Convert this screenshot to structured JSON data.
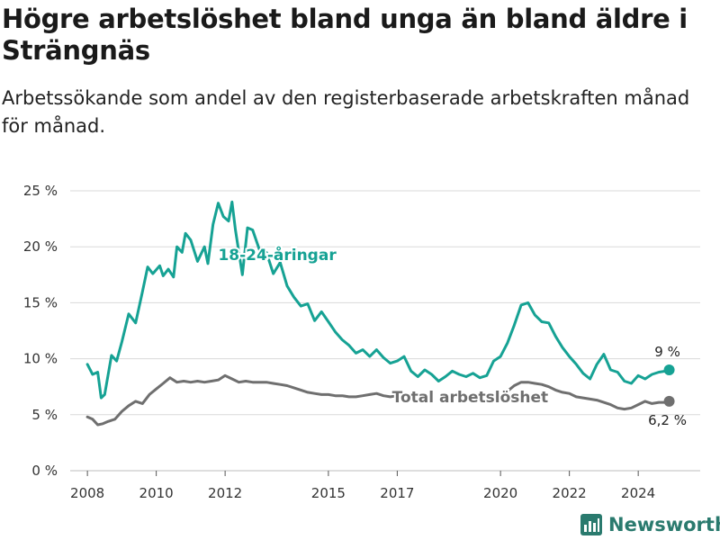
{
  "title": "Högre arbetslöshet bland unga än bland äldre i Strängnäs",
  "subtitle": "Arbetssökande som andel av den registerbaserade arbetskraften månad för månad.",
  "brand": "Newsworthy",
  "colors": {
    "youth": "#16a294",
    "total": "#6f6f6f",
    "grid": "#d9d9d9",
    "brand": "#2a7a6e"
  },
  "chart_data": {
    "type": "line",
    "xlim": [
      2007.5,
      2025.8
    ],
    "ylim": [
      0,
      25
    ],
    "grid": true,
    "x_ticks": [
      {
        "value": 2008,
        "label": "2008"
      },
      {
        "value": 2010,
        "label": "2010"
      },
      {
        "value": 2012,
        "label": "2012"
      },
      {
        "value": 2015,
        "label": "2015"
      },
      {
        "value": 2017,
        "label": "2017"
      },
      {
        "value": 2020,
        "label": "2020"
      },
      {
        "value": 2022,
        "label": "2022"
      },
      {
        "value": 2024,
        "label": "2024"
      }
    ],
    "y_ticks": [
      {
        "value": 0,
        "label": "0 %"
      },
      {
        "value": 5,
        "label": "5 %"
      },
      {
        "value": 10,
        "label": "10 %"
      },
      {
        "value": 15,
        "label": "15 %"
      },
      {
        "value": 20,
        "label": "20 %"
      },
      {
        "value": 25,
        "label": "25 %"
      }
    ],
    "series": [
      {
        "name": "18-24-åringar",
        "label_at": [
          2011.8,
          18.8
        ],
        "end_label": "9 %",
        "segments": [
          {
            "x": [
              2008.0,
              2008.15,
              2008.3,
              2008.4,
              2008.5,
              2008.7,
              2008.85,
              2009.0,
              2009.2,
              2009.4,
              2009.6,
              2009.75,
              2009.9,
              2010.1,
              2010.2,
              2010.35,
              2010.5,
              2010.6,
              2010.75,
              2010.85,
              2011.0,
              2011.2,
              2011.4,
              2011.5,
              2011.65,
              2011.8,
              2011.95,
              2012.1,
              2012.2,
              2012.3,
              2012.5,
              2012.65,
              2012.8,
              2013.0,
              2013.2,
              2013.4,
              2013.6,
              2013.8,
              2014.0,
              2014.2,
              2014.4,
              2014.6,
              2014.8,
              2015.0,
              2015.2,
              2015.4,
              2015.6,
              2015.8,
              2016.0,
              2016.2,
              2016.4,
              2016.6,
              2016.8,
              2017.0,
              2017.2,
              2017.4,
              2017.6,
              2017.8,
              2018.0,
              2018.2,
              2018.4,
              2018.6,
              2018.8,
              2019.0,
              2019.2,
              2019.4,
              2019.6,
              2019.8,
              2020.0,
              2020.2,
              2020.4,
              2020.6,
              2020.8,
              2021.0,
              2021.2,
              2021.4,
              2021.6,
              2021.8,
              2022.0,
              2022.2,
              2022.4,
              2022.6,
              2022.8,
              2023.0,
              2023.2,
              2023.4,
              2023.6,
              2023.8,
              2024.0,
              2024.2,
              2024.4,
              2024.6,
              2024.8,
              2024.9
            ],
            "y": [
              9.5,
              8.6,
              8.8,
              6.5,
              6.8,
              10.3,
              9.8,
              11.5,
              14.0,
              13.2,
              16.0,
              18.2,
              17.6,
              18.3,
              17.4,
              18.0,
              17.3,
              20.0,
              19.5,
              21.2,
              20.6,
              18.7,
              20.0,
              18.5,
              22.0,
              23.9,
              22.7,
              22.3,
              24.0,
              21.5,
              17.5,
              21.7,
              21.5,
              19.7,
              19.5,
              17.6,
              18.6,
              16.5,
              15.5,
              14.7,
              14.9,
              13.4,
              14.2,
              13.3,
              12.4,
              11.7,
              11.2,
              10.5,
              10.8,
              10.2,
              10.8,
              10.1,
              9.6,
              9.8,
              10.2,
              8.9,
              8.4,
              9.0,
              8.6,
              8.0,
              8.4,
              8.9,
              8.6,
              8.4,
              8.7,
              8.3,
              8.5,
              9.8,
              10.2,
              11.4,
              13.0,
              14.8,
              15.0,
              13.9,
              13.3,
              13.2,
              12.0,
              11.0,
              10.2,
              9.5,
              8.7,
              8.2,
              9.5,
              10.4,
              9.0,
              8.8,
              8.0,
              7.8,
              8.5,
              8.2,
              8.6,
              8.8,
              8.9,
              9.0
            ]
          }
        ]
      },
      {
        "name": "Total arbetslöshet",
        "label_at": [
          2016.85,
          6.1
        ],
        "end_label": "6,2 %",
        "segments": [
          {
            "x": [
              2008.0,
              2008.15,
              2008.3,
              2008.45,
              2008.6,
              2008.8,
              2009.0,
              2009.2,
              2009.4,
              2009.6,
              2009.8,
              2010.0,
              2010.2,
              2010.4,
              2010.6,
              2010.8,
              2011.0,
              2011.2,
              2011.4,
              2011.6,
              2011.8,
              2012.0,
              2012.2,
              2012.4,
              2012.6,
              2012.8,
              2013.0,
              2013.2,
              2013.4,
              2013.6,
              2013.8,
              2014.0,
              2014.2,
              2014.4,
              2014.6,
              2014.8,
              2015.0,
              2015.2,
              2015.4,
              2015.6,
              2015.8,
              2016.0,
              2016.2,
              2016.4,
              2016.6,
              2016.8,
              2017.0
            ],
            "y": [
              4.8,
              4.6,
              4.1,
              4.2,
              4.4,
              4.6,
              5.3,
              5.8,
              6.2,
              6.0,
              6.8,
              7.3,
              7.8,
              8.3,
              7.9,
              8.0,
              7.9,
              8.0,
              7.9,
              8.0,
              8.1,
              8.5,
              8.2,
              7.9,
              8.0,
              7.9,
              7.9,
              7.9,
              7.8,
              7.7,
              7.6,
              7.4,
              7.2,
              7.0,
              6.9,
              6.8,
              6.8,
              6.7,
              6.7,
              6.6,
              6.6,
              6.7,
              6.8,
              6.9,
              6.7,
              6.6,
              6.7
            ]
          },
          {
            "x": [
              2020.2,
              2020.4,
              2020.6,
              2020.8,
              2021.0,
              2021.2,
              2021.4,
              2021.6,
              2021.8,
              2022.0,
              2022.2,
              2022.4,
              2022.6,
              2022.8,
              2023.0,
              2023.2,
              2023.4,
              2023.6,
              2023.8,
              2024.0,
              2024.2,
              2024.4,
              2024.6,
              2024.8,
              2024.9
            ],
            "y": [
              7.1,
              7.6,
              7.9,
              7.9,
              7.8,
              7.7,
              7.5,
              7.2,
              7.0,
              6.9,
              6.6,
              6.5,
              6.4,
              6.3,
              6.1,
              5.9,
              5.6,
              5.5,
              5.6,
              5.9,
              6.2,
              6.0,
              6.1,
              6.1,
              6.2
            ]
          }
        ]
      }
    ]
  }
}
